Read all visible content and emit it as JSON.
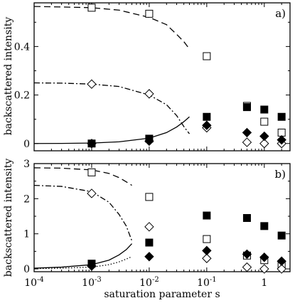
{
  "chart_data": [
    {
      "type": "scatter",
      "panel_label": "a)",
      "xscale": "log",
      "xlim": [
        0.0001,
        2.8
      ],
      "ylim": [
        -0.03,
        0.58
      ],
      "ylabel": "backscattered intensity",
      "yticks": [
        0,
        0.2,
        0.4
      ],
      "ytick_labels": [
        "0",
        "0.2",
        "0.4"
      ],
      "series": [
        {
          "marker": "open-square",
          "x": [
            0.001,
            0.01,
            0.1,
            0.5,
            1,
            2
          ],
          "y": [
            0.56,
            0.535,
            0.36,
            0.155,
            0.09,
            0.045
          ]
        },
        {
          "marker": "filled-square",
          "x": [
            0.001,
            0.01,
            0.1,
            0.5,
            1,
            2
          ],
          "y": [
            0.0,
            0.02,
            0.11,
            0.15,
            0.14,
            0.11
          ]
        },
        {
          "marker": "open-diamond",
          "x": [
            0.001,
            0.01,
            0.1,
            0.5,
            1,
            2
          ],
          "y": [
            0.245,
            0.205,
            0.065,
            0.005,
            0.0,
            0.0
          ]
        },
        {
          "marker": "filled-diamond",
          "x": [
            0.001,
            0.01,
            0.1,
            0.5,
            1,
            2
          ],
          "y": [
            0.0,
            0.01,
            0.075,
            0.045,
            0.03,
            0.015
          ]
        }
      ],
      "curves": [
        {
          "style": "dashed",
          "x": [
            0.0001,
            0.0003,
            0.001,
            0.003,
            0.01,
            0.02,
            0.03,
            0.04,
            0.05
          ],
          "y": [
            0.565,
            0.563,
            0.56,
            0.55,
            0.52,
            0.49,
            0.45,
            0.42,
            0.39
          ]
        },
        {
          "style": "dash-dot",
          "x": [
            0.0001,
            0.0003,
            0.001,
            0.003,
            0.01,
            0.02,
            0.03,
            0.04,
            0.05
          ],
          "y": [
            0.25,
            0.249,
            0.245,
            0.235,
            0.2,
            0.16,
            0.115,
            0.07,
            0.04
          ]
        },
        {
          "style": "solid",
          "x": [
            0.0001,
            0.0003,
            0.001,
            0.003,
            0.01,
            0.02,
            0.03,
            0.04,
            0.05
          ],
          "y": [
            0.0,
            0.0005,
            0.002,
            0.007,
            0.022,
            0.045,
            0.068,
            0.09,
            0.11
          ]
        }
      ]
    },
    {
      "type": "scatter",
      "panel_label": "b)",
      "xscale": "log",
      "xlim": [
        0.0001,
        2.8
      ],
      "ylim": [
        -0.08,
        3.0
      ],
      "xlabel": "saturation parameter s",
      "ylabel": "backscattered intensity",
      "yticks": [
        0,
        1,
        2,
        3
      ],
      "ytick_labels": [
        "0",
        "1",
        "2",
        "3"
      ],
      "xticks": [
        0.0001,
        0.001,
        0.01,
        0.1,
        1
      ],
      "xtick_labels": [
        {
          "base": "10",
          "exp": "-4"
        },
        {
          "base": "10",
          "exp": "-3"
        },
        {
          "base": "10",
          "exp": "-2"
        },
        {
          "base": "10",
          "exp": "-1"
        },
        {
          "base": "1",
          "exp": ""
        }
      ],
      "series": [
        {
          "marker": "open-square",
          "x": [
            0.001,
            0.01,
            0.1,
            0.5,
            1,
            2
          ],
          "y": [
            2.75,
            2.05,
            0.85,
            0.38,
            0.25,
            0.12
          ]
        },
        {
          "marker": "filled-square",
          "x": [
            0.001,
            0.01,
            0.1,
            0.5,
            1,
            2
          ],
          "y": [
            0.15,
            0.75,
            1.52,
            1.45,
            1.22,
            0.95
          ]
        },
        {
          "marker": "open-diamond",
          "x": [
            0.001,
            0.01,
            0.1,
            0.5,
            1,
            2
          ],
          "y": [
            2.15,
            1.2,
            0.3,
            0.05,
            0.0,
            0.0
          ]
        },
        {
          "marker": "filled-diamond",
          "x": [
            0.001,
            0.01,
            0.1,
            0.5,
            1,
            2
          ],
          "y": [
            0.08,
            0.35,
            0.52,
            0.42,
            0.33,
            0.22
          ]
        }
      ],
      "curves": [
        {
          "style": "dashed",
          "x": [
            0.0001,
            0.0003,
            0.001,
            0.002,
            0.003,
            0.004,
            0.005
          ],
          "y": [
            2.88,
            2.87,
            2.82,
            2.72,
            2.6,
            2.48,
            2.38
          ]
        },
        {
          "style": "dash-dot",
          "x": [
            0.0001,
            0.0003,
            0.001,
            0.002,
            0.003,
            0.004,
            0.005
          ],
          "y": [
            2.38,
            2.35,
            2.2,
            1.9,
            1.55,
            1.22,
            0.8
          ]
        },
        {
          "style": "solid",
          "x": [
            0.0001,
            0.0003,
            0.001,
            0.002,
            0.003,
            0.004,
            0.005
          ],
          "y": [
            0.02,
            0.05,
            0.12,
            0.25,
            0.4,
            0.55,
            0.72
          ]
        },
        {
          "style": "dotted",
          "x": [
            0.0001,
            0.0003,
            0.001,
            0.002,
            0.003,
            0.004,
            0.005
          ],
          "y": [
            0.01,
            0.02,
            0.05,
            0.12,
            0.2,
            0.28,
            0.35
          ]
        }
      ]
    }
  ]
}
